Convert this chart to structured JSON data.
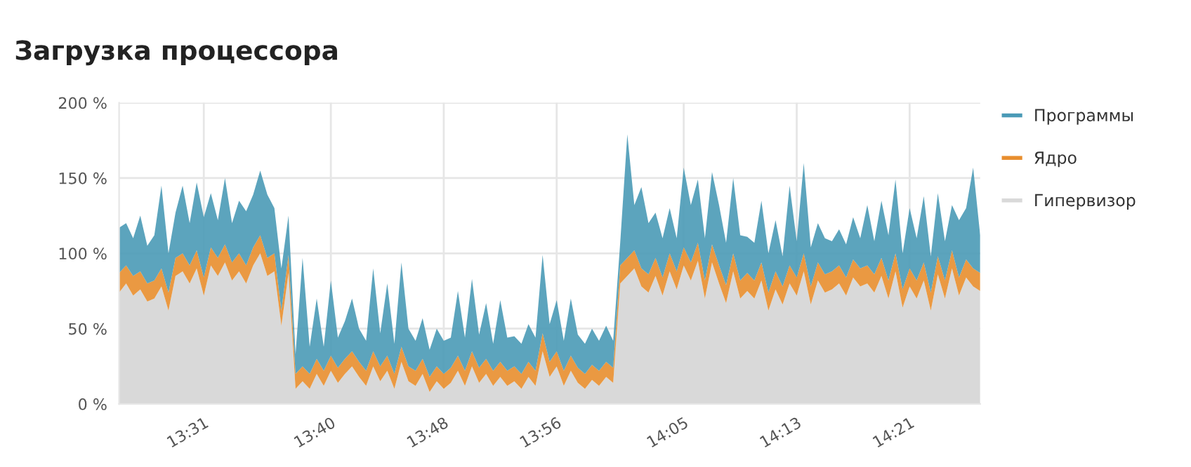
{
  "chart_data": {
    "type": "area",
    "stacked": true,
    "title": "Загрузка процессора",
    "x": [
      13.4167,
      13.425,
      13.4333,
      13.4417,
      13.45,
      13.4583,
      13.4667,
      13.475,
      13.4833,
      13.4917,
      13.5,
      13.5083,
      13.5167,
      13.525,
      13.5333,
      13.5417,
      13.55,
      13.5583,
      13.5667,
      13.575,
      13.5833,
      13.5917,
      13.6,
      13.6083,
      13.6167,
      13.625,
      13.6333,
      13.6417,
      13.65,
      13.6583,
      13.6667,
      13.675,
      13.6833,
      13.6917,
      13.7,
      13.7083,
      13.7167,
      13.725,
      13.7333,
      13.7417,
      13.75,
      13.7583,
      13.7667,
      13.775,
      13.7833,
      13.7917,
      13.8,
      13.8083,
      13.8167,
      13.825,
      13.8333,
      13.8417,
      13.85,
      13.8583,
      13.8667,
      13.875,
      13.8833,
      13.8917,
      13.9,
      13.9083,
      13.9167,
      13.925,
      13.9333,
      13.9417,
      13.95,
      13.9583,
      13.9667,
      13.975,
      13.9833,
      13.9917,
      14.0,
      14.0083,
      14.0167,
      14.025,
      14.0333,
      14.0417,
      14.05,
      14.0583,
      14.0667,
      14.075,
      14.0833,
      14.0917,
      14.1,
      14.1083,
      14.1167,
      14.125,
      14.1333,
      14.1417,
      14.15,
      14.1583,
      14.1667,
      14.175,
      14.1833,
      14.1917,
      14.2,
      14.2083,
      14.2167,
      14.225,
      14.2333,
      14.2417,
      14.25,
      14.2583,
      14.2667,
      14.275,
      14.2833,
      14.2917,
      14.3,
      14.3083,
      14.3167,
      14.325,
      14.3333,
      14.3417,
      14.35,
      14.3583,
      14.3667,
      14.375,
      14.3833,
      14.3917,
      14.4,
      14.4083,
      14.4167,
      14.425,
      14.4333
    ],
    "series": [
      {
        "name": "Гипервизор",
        "color": "#d9d9d9",
        "values": [
          74,
          80,
          72,
          76,
          68,
          70,
          78,
          62,
          85,
          88,
          80,
          90,
          72,
          92,
          85,
          94,
          82,
          88,
          80,
          92,
          100,
          85,
          88,
          52,
          87,
          10,
          15,
          10,
          20,
          12,
          22,
          14,
          20,
          25,
          18,
          12,
          25,
          15,
          22,
          10,
          28,
          15,
          12,
          20,
          8,
          15,
          10,
          14,
          22,
          12,
          25,
          14,
          20,
          12,
          18,
          12,
          15,
          10,
          18,
          12,
          35,
          18,
          25,
          12,
          22,
          14,
          10,
          16,
          12,
          18,
          14,
          80,
          85,
          90,
          78,
          74,
          85,
          72,
          88,
          76,
          92,
          82,
          95,
          70,
          94,
          80,
          67,
          88,
          70,
          75,
          70,
          82,
          62,
          76,
          66,
          80,
          72,
          88,
          66,
          82,
          74,
          76,
          80,
          72,
          84,
          78,
          80,
          74,
          85,
          70,
          88,
          64,
          78,
          70,
          82,
          62,
          86,
          70,
          90,
          72,
          84,
          78,
          75
        ]
      },
      {
        "name": "Ядро",
        "color": "#e88e2e",
        "values": [
          13,
          12,
          13,
          12,
          12,
          12,
          12,
          12,
          12,
          12,
          12,
          12,
          12,
          12,
          12,
          12,
          12,
          12,
          12,
          12,
          12,
          12,
          12,
          10,
          12,
          10,
          10,
          10,
          10,
          10,
          10,
          10,
          10,
          10,
          10,
          10,
          10,
          10,
          10,
          10,
          10,
          10,
          10,
          10,
          10,
          10,
          10,
          10,
          10,
          10,
          10,
          10,
          10,
          10,
          10,
          10,
          10,
          10,
          10,
          10,
          12,
          10,
          10,
          10,
          10,
          10,
          10,
          10,
          10,
          10,
          10,
          12,
          12,
          12,
          12,
          12,
          12,
          12,
          12,
          12,
          12,
          12,
          12,
          12,
          12,
          12,
          12,
          12,
          12,
          12,
          12,
          12,
          12,
          12,
          12,
          12,
          12,
          12,
          12,
          12,
          12,
          12,
          12,
          12,
          12,
          12,
          12,
          12,
          12,
          12,
          12,
          12,
          12,
          12,
          12,
          12,
          12,
          12,
          12,
          12,
          12,
          12,
          12
        ]
      },
      {
        "name": "Программы",
        "color": "#4a9ab6",
        "values": [
          30,
          28,
          25,
          37,
          25,
          30,
          55,
          26,
          30,
          45,
          28,
          45,
          40,
          36,
          25,
          44,
          26,
          35,
          36,
          35,
          43,
          42,
          30,
          28,
          26,
          13,
          72,
          18,
          40,
          16,
          50,
          20,
          25,
          35,
          22,
          20,
          55,
          22,
          48,
          20,
          56,
          25,
          20,
          27,
          18,
          25,
          22,
          20,
          43,
          22,
          48,
          22,
          37,
          18,
          41,
          22,
          20,
          20,
          25,
          22,
          52,
          25,
          34,
          20,
          38,
          22,
          20,
          24,
          20,
          24,
          18,
          15,
          82,
          30,
          54,
          34,
          30,
          26,
          30,
          22,
          53,
          38,
          42,
          28,
          48,
          40,
          28,
          50,
          30,
          24,
          25,
          41,
          26,
          34,
          20,
          53,
          24,
          60,
          26,
          26,
          24,
          20,
          24,
          22,
          28,
          20,
          40,
          22,
          38,
          30,
          49,
          24,
          40,
          28,
          44,
          24,
          42,
          26,
          30,
          38,
          34,
          67,
          25
        ]
      }
    ],
    "xlim": [
      13.4167,
      14.4333
    ],
    "xticks": [
      {
        "value": 13.5167,
        "label": "13:31"
      },
      {
        "value": 13.6667,
        "label": "13:40"
      },
      {
        "value": 13.8,
        "label": "13:48"
      },
      {
        "value": 13.9333,
        "label": "13:56"
      },
      {
        "value": 14.0833,
        "label": "14:05"
      },
      {
        "value": 14.2167,
        "label": "14:13"
      },
      {
        "value": 14.35,
        "label": "14:21"
      }
    ],
    "ylim": [
      0,
      200
    ],
    "yticks": [
      {
        "value": 0,
        "label": "0 %"
      },
      {
        "value": 50,
        "label": "50 %"
      },
      {
        "value": 100,
        "label": "100 %"
      },
      {
        "value": 150,
        "label": "150 %"
      },
      {
        "value": 200,
        "label": "200 %"
      }
    ],
    "grid": true,
    "legend": "right"
  }
}
